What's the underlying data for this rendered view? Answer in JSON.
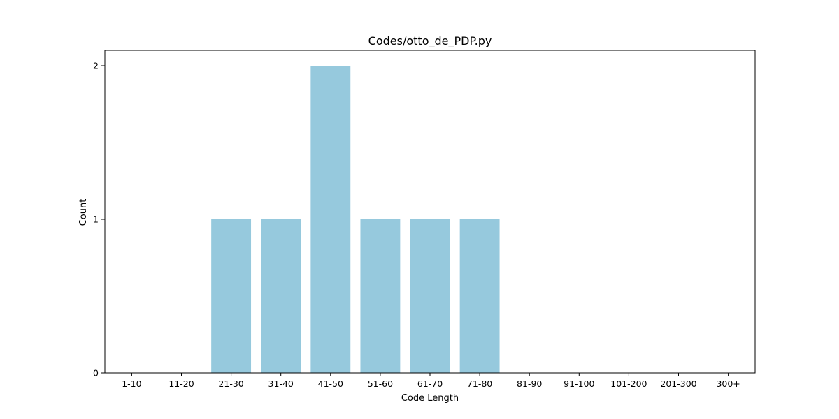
{
  "chart_data": {
    "type": "bar",
    "title": "Codes/otto_de_PDP.py",
    "xlabel": "Code Length",
    "ylabel": "Count",
    "categories": [
      "1-10",
      "11-20",
      "21-30",
      "31-40",
      "41-50",
      "51-60",
      "61-70",
      "71-80",
      "81-90",
      "91-100",
      "101-200",
      "201-300",
      "300+"
    ],
    "values": [
      0,
      0,
      1,
      1,
      2,
      1,
      1,
      1,
      0,
      0,
      0,
      0,
      0
    ],
    "ylim": [
      0,
      2.1
    ],
    "yticks": [
      0,
      1,
      2
    ],
    "grid": false,
    "bar_color": "#96c9dd"
  }
}
